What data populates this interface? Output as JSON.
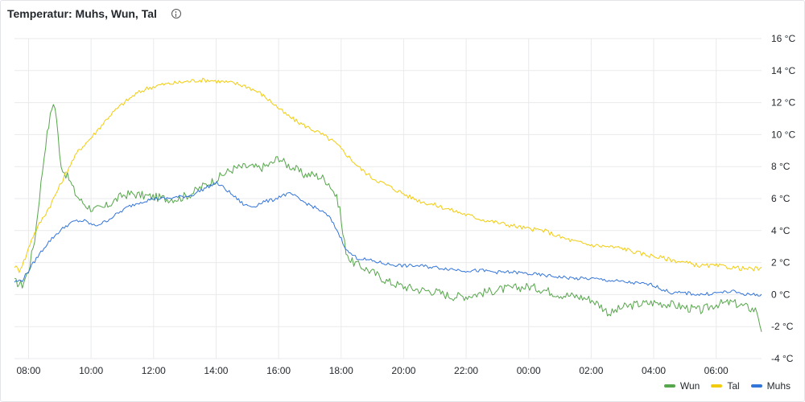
{
  "panel": {
    "title": "Temperatur: Muhs, Wun, Tal",
    "info_icon": "info-circle-icon"
  },
  "chart_data": {
    "type": "line",
    "title": "Temperatur: Muhs, Wun, Tal",
    "ylim": [
      -4,
      16
    ],
    "y_ticks": [
      "16 °C",
      "14 °C",
      "12 °C",
      "10 °C",
      "8 °C",
      "6 °C",
      "4 °C",
      "2 °C",
      "0 °C",
      "-2 °C",
      "-4 °C"
    ],
    "y_tick_values": [
      16,
      14,
      12,
      10,
      8,
      6,
      4,
      2,
      0,
      -2,
      -4
    ],
    "x_ticks": [
      "08:00",
      "10:00",
      "12:00",
      "14:00",
      "16:00",
      "18:00",
      "20:00",
      "22:00",
      "00:00",
      "02:00",
      "04:00",
      "06:00"
    ],
    "x_tick_hours": [
      8,
      10,
      12,
      14,
      16,
      18,
      20,
      22,
      24,
      26,
      28,
      30
    ],
    "xlim_hours": [
      7.55,
      31.45
    ],
    "grid": true,
    "legend": "bottom-right",
    "series": [
      {
        "name": "Wun",
        "color": "#56a64b",
        "x": [
          7.55,
          7.8,
          8.0,
          8.2,
          8.4,
          8.55,
          8.7,
          8.8,
          8.9,
          9.0,
          9.1,
          9.3,
          9.5,
          9.7,
          9.9,
          10.1,
          10.4,
          10.7,
          11.0,
          11.3,
          11.6,
          12.0,
          12.4,
          12.8,
          13.2,
          13.6,
          14.0,
          14.3,
          14.6,
          15.0,
          15.4,
          15.8,
          16.0,
          16.2,
          16.5,
          16.8,
          17.1,
          17.4,
          17.6,
          17.8,
          17.95,
          18.05,
          18.15,
          18.3,
          18.6,
          19.0,
          19.5,
          20.0,
          20.5,
          21.0,
          21.5,
          22.0,
          22.5,
          23.0,
          23.5,
          24.0,
          24.5,
          25.0,
          25.5,
          26.0,
          26.3,
          26.6,
          27.0,
          27.5,
          28.0,
          28.5,
          29.0,
          29.5,
          30.0,
          30.5,
          31.0,
          31.3,
          31.45
        ],
        "y": [
          0.8,
          0.6,
          1.5,
          3.5,
          7.0,
          9.5,
          11.2,
          12.1,
          11.0,
          8.5,
          7.8,
          7.2,
          6.3,
          5.8,
          5.5,
          5.3,
          5.4,
          5.8,
          6.2,
          6.3,
          6.2,
          6.1,
          6.0,
          6.0,
          6.3,
          6.8,
          7.2,
          7.6,
          7.9,
          8.0,
          7.9,
          8.2,
          8.6,
          8.2,
          7.9,
          7.5,
          7.5,
          7.3,
          7.0,
          6.3,
          5.5,
          3.8,
          2.8,
          2.1,
          1.8,
          1.4,
          0.8,
          0.5,
          0.3,
          0.2,
          -0.1,
          -0.1,
          0.1,
          0.3,
          0.4,
          0.5,
          0.3,
          0.0,
          -0.1,
          -0.3,
          -0.7,
          -1.2,
          -0.8,
          -0.6,
          -0.5,
          -0.6,
          -0.8,
          -1.0,
          -0.6,
          -0.5,
          -0.8,
          -1.0,
          -2.2
        ]
      },
      {
        "name": "Tal",
        "color": "#f2cc0c",
        "x": [
          7.55,
          7.7,
          7.9,
          8.1,
          8.4,
          8.7,
          9.0,
          9.3,
          9.6,
          10.0,
          10.3,
          10.6,
          11.0,
          11.4,
          11.8,
          12.2,
          12.6,
          13.0,
          13.4,
          13.8,
          14.2,
          14.6,
          15.0,
          15.4,
          15.8,
          16.2,
          16.6,
          17.0,
          17.4,
          17.8,
          18.2,
          18.6,
          19.0,
          19.4,
          19.8,
          20.2,
          20.6,
          21.0,
          21.5,
          22.0,
          22.5,
          23.0,
          23.5,
          24.0,
          24.5,
          25.0,
          25.5,
          26.0,
          26.5,
          27.0,
          27.5,
          28.0,
          28.5,
          29.0,
          29.5,
          30.0,
          30.5,
          31.0,
          31.45
        ],
        "y": [
          1.8,
          1.5,
          2.3,
          3.5,
          4.6,
          5.6,
          6.8,
          8.0,
          9.0,
          9.8,
          10.5,
          11.2,
          11.9,
          12.5,
          12.9,
          13.1,
          13.2,
          13.3,
          13.4,
          13.4,
          13.3,
          13.2,
          13.0,
          12.6,
          12.0,
          11.3,
          10.8,
          10.4,
          10.0,
          9.5,
          8.7,
          7.9,
          7.3,
          6.9,
          6.5,
          6.1,
          5.8,
          5.6,
          5.3,
          5.0,
          4.7,
          4.5,
          4.3,
          4.1,
          4.0,
          3.6,
          3.3,
          3.1,
          3.0,
          2.9,
          2.6,
          2.4,
          2.2,
          2.0,
          1.8,
          1.8,
          1.7,
          1.6,
          1.6
        ]
      },
      {
        "name": "Muhs",
        "color": "#3274d9",
        "x": [
          7.55,
          7.8,
          8.0,
          8.3,
          8.6,
          8.9,
          9.2,
          9.5,
          9.8,
          10.1,
          10.4,
          10.8,
          11.2,
          11.6,
          12.0,
          12.4,
          12.8,
          13.2,
          13.6,
          14.0,
          14.3,
          14.6,
          14.9,
          15.2,
          15.5,
          15.8,
          16.1,
          16.4,
          16.7,
          17.0,
          17.3,
          17.6,
          17.85,
          18.0,
          18.2,
          18.5,
          19.0,
          19.5,
          20.0,
          20.5,
          21.0,
          21.5,
          22.0,
          22.5,
          23.0,
          23.5,
          24.0,
          24.5,
          25.0,
          25.5,
          26.0,
          26.5,
          27.0,
          27.5,
          28.0,
          28.3,
          28.6,
          29.0,
          29.5,
          30.0,
          30.5,
          31.0,
          31.45
        ],
        "y": [
          0.8,
          0.9,
          1.5,
          2.4,
          3.2,
          3.8,
          4.3,
          4.6,
          4.6,
          4.3,
          4.5,
          5.0,
          5.5,
          5.8,
          6.0,
          6.0,
          6.1,
          6.2,
          6.6,
          7.0,
          6.6,
          6.1,
          5.6,
          5.5,
          5.8,
          5.9,
          6.2,
          6.3,
          5.9,
          5.6,
          5.3,
          4.9,
          4.1,
          3.5,
          2.7,
          2.3,
          2.1,
          1.9,
          1.8,
          1.8,
          1.7,
          1.6,
          1.5,
          1.5,
          1.4,
          1.4,
          1.3,
          1.2,
          1.1,
          1.0,
          1.0,
          0.9,
          0.8,
          0.7,
          0.6,
          0.3,
          0.1,
          0.1,
          0.0,
          0.1,
          0.2,
          0.0,
          0.0
        ]
      }
    ]
  }
}
